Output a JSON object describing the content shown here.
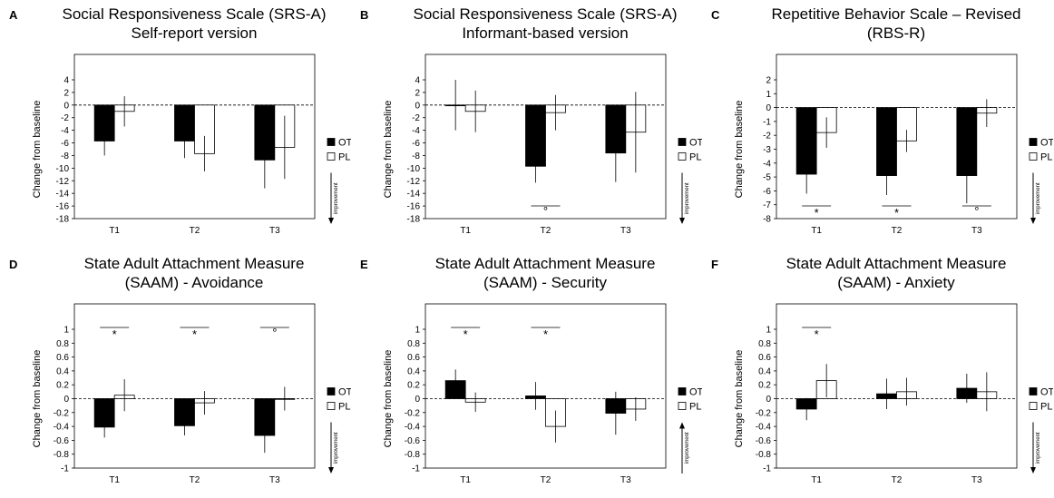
{
  "chart_data": [
    {
      "panel": "A",
      "type": "bar",
      "title": [
        "Social Responsiveness Scale (SRS-A)",
        "Self-report version"
      ],
      "ylabel": "Change from baseline",
      "categories": [
        "T1",
        "T2",
        "T3"
      ],
      "ylim": [
        -18,
        4
      ],
      "yticks": [
        4,
        2,
        0,
        -2,
        -4,
        -6,
        -8,
        -10,
        -12,
        -14,
        -16,
        -18
      ],
      "series": [
        {
          "name": "OT",
          "values": [
            -5.7,
            -5.7,
            -8.7
          ],
          "err": [
            2.3,
            2.7,
            4.5
          ]
        },
        {
          "name": "PL",
          "values": [
            -1.0,
            -7.7,
            -6.7
          ],
          "err": [
            2.4,
            2.8,
            5.0
          ]
        }
      ],
      "improvement": "down",
      "improvement_label": "improvement",
      "significance": [
        {
          "category": 0,
          "mark": ""
        },
        {
          "category": 1,
          "mark": ""
        },
        {
          "category": 2,
          "mark": ""
        }
      ],
      "legend_position": "right"
    },
    {
      "panel": "B",
      "type": "bar",
      "title": [
        "Social Responsiveness Scale (SRS-A)",
        "Informant-based version"
      ],
      "ylabel": "Change from baseline",
      "categories": [
        "T1",
        "T2",
        "T3"
      ],
      "ylim": [
        -18,
        4
      ],
      "yticks": [
        4,
        2,
        0,
        -2,
        -4,
        -6,
        -8,
        -10,
        -12,
        -14,
        -16,
        -18
      ],
      "series": [
        {
          "name": "OT",
          "values": [
            0.0,
            -9.7,
            -7.6
          ],
          "err": [
            4.0,
            2.6,
            4.6
          ]
        },
        {
          "name": "PL",
          "values": [
            -1.0,
            -1.2,
            -4.3
          ],
          "err": [
            3.3,
            2.8,
            6.4
          ]
        }
      ],
      "improvement": "down",
      "improvement_label": "improvement",
      "significance": [
        {
          "category": 1,
          "mark": "°"
        }
      ],
      "legend_position": "right"
    },
    {
      "panel": "C",
      "type": "bar",
      "title": [
        "Repetitive Behavior Scale – Revised",
        "(RBS-R)"
      ],
      "ylabel": "Change from baseline",
      "categories": [
        "T1",
        "T2",
        "T3"
      ],
      "ylim": [
        -8,
        2
      ],
      "yticks": [
        2,
        1,
        0,
        -1,
        -2,
        -3,
        -4,
        -5,
        -6,
        -7,
        -8
      ],
      "series": [
        {
          "name": "OT",
          "values": [
            -4.8,
            -4.9,
            -4.9
          ],
          "err": [
            1.4,
            1.4,
            2.0
          ]
        },
        {
          "name": "PL",
          "values": [
            -1.8,
            -2.4,
            -0.4
          ],
          "err": [
            1.1,
            0.8,
            1.0
          ]
        }
      ],
      "improvement": "down",
      "improvement_label": "improvement",
      "significance": [
        {
          "category": 0,
          "mark": "*"
        },
        {
          "category": 1,
          "mark": "*"
        },
        {
          "category": 2,
          "mark": "°"
        }
      ],
      "legend_position": "right"
    },
    {
      "panel": "D",
      "type": "bar",
      "title": [
        "State Adult Attachment Measure",
        "(SAAM) - Avoidance"
      ],
      "ylabel": "Change from baseline",
      "categories": [
        "T1",
        "T2",
        "T3"
      ],
      "ylim": [
        -1,
        1
      ],
      "yticks": [
        1,
        0.8,
        0.6,
        0.4,
        0.2,
        0,
        -0.2,
        -0.4,
        -0.6,
        -0.8,
        -1
      ],
      "series": [
        {
          "name": "OT",
          "values": [
            -0.41,
            -0.39,
            -0.53
          ],
          "err": [
            0.15,
            0.14,
            0.25
          ]
        },
        {
          "name": "PL",
          "values": [
            0.05,
            -0.06,
            0.0
          ],
          "err": [
            0.23,
            0.17,
            0.17
          ]
        }
      ],
      "improvement": "down",
      "improvement_label": "improvement",
      "significance": [
        {
          "category": 0,
          "mark": "*"
        },
        {
          "category": 1,
          "mark": "*"
        },
        {
          "category": 2,
          "mark": "°"
        }
      ],
      "legend_position": "right"
    },
    {
      "panel": "E",
      "type": "bar",
      "title": [
        "State Adult Attachment Measure",
        "(SAAM) - Security"
      ],
      "ylabel": "Change from baseline",
      "categories": [
        "T1",
        "T2",
        "T3"
      ],
      "ylim": [
        -1,
        1
      ],
      "yticks": [
        1,
        0.8,
        0.6,
        0.4,
        0.2,
        0,
        -0.2,
        -0.4,
        -0.6,
        -0.8,
        -1
      ],
      "series": [
        {
          "name": "OT",
          "values": [
            0.26,
            0.04,
            -0.21
          ],
          "err": [
            0.16,
            0.2,
            0.31
          ]
        },
        {
          "name": "PL",
          "values": [
            -0.05,
            -0.4,
            -0.15
          ],
          "err": [
            0.14,
            0.23,
            0.17
          ]
        }
      ],
      "improvement": "up",
      "improvement_label": "improvement",
      "significance": [
        {
          "category": 0,
          "mark": "*"
        },
        {
          "category": 1,
          "mark": "*"
        }
      ],
      "legend_position": "right"
    },
    {
      "panel": "F",
      "type": "bar",
      "title": [
        "State Adult Attachment Measure",
        "(SAAM) - Anxiety"
      ],
      "ylabel": "Change from baseline",
      "categories": [
        "T1",
        "T2",
        "T3"
      ],
      "ylim": [
        -1,
        1
      ],
      "yticks": [
        1,
        0.8,
        0.6,
        0.4,
        0.2,
        0,
        -0.2,
        -0.4,
        -0.6,
        -0.8,
        -1
      ],
      "series": [
        {
          "name": "OT",
          "values": [
            -0.15,
            0.07,
            0.15
          ],
          "err": [
            0.16,
            0.22,
            0.21
          ]
        },
        {
          "name": "PL",
          "values": [
            0.26,
            0.1,
            0.1
          ],
          "err": [
            0.24,
            0.2,
            0.28
          ]
        }
      ],
      "improvement": "down",
      "improvement_label": "improvement",
      "significance": [
        {
          "category": 0,
          "mark": "*"
        }
      ],
      "legend_position": "right"
    }
  ],
  "colors": {
    "ot_fill": "#000000",
    "pl_fill": "#ffffff",
    "stroke": "#000000"
  }
}
